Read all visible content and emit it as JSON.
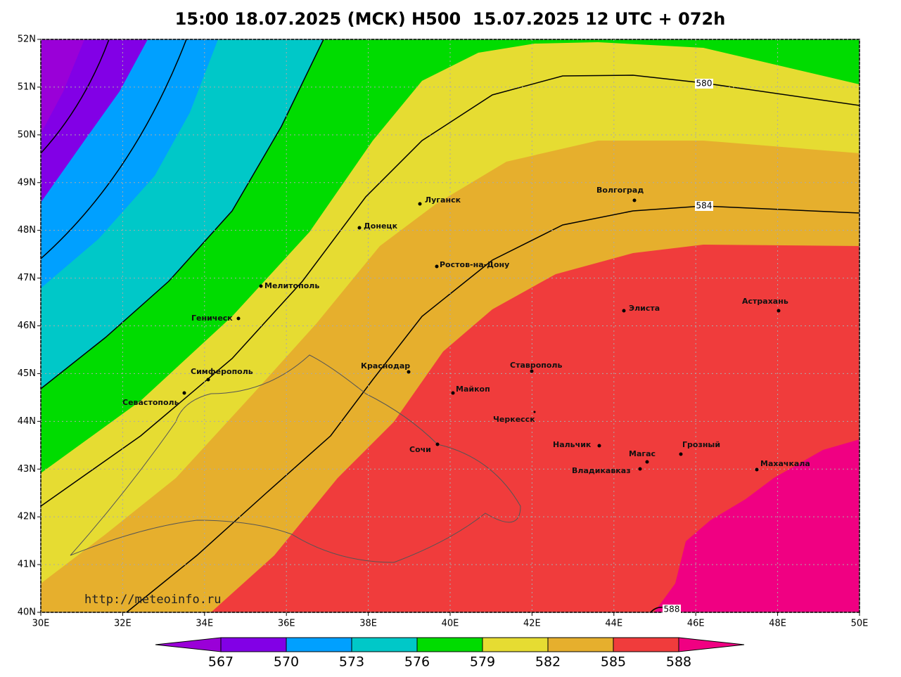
{
  "title": "15:00 18.07.2025 (МСК) H500  15.07.2025 12 UTC + 072h",
  "map": {
    "xlim": [
      30,
      50
    ],
    "ylim": [
      40,
      52
    ],
    "xticks": [
      {
        "value": 30,
        "label": "30E"
      },
      {
        "value": 32,
        "label": "32E"
      },
      {
        "value": 34,
        "label": "34E"
      },
      {
        "value": 36,
        "label": "36E"
      },
      {
        "value": 38,
        "label": "38E"
      },
      {
        "value": 40,
        "label": "40E"
      },
      {
        "value": 42,
        "label": "42E"
      },
      {
        "value": 44,
        "label": "44E"
      },
      {
        "value": 46,
        "label": "46E"
      },
      {
        "value": 48,
        "label": "48E"
      },
      {
        "value": 50,
        "label": "50E"
      }
    ],
    "yticks": [
      {
        "value": 40,
        "label": "40N"
      },
      {
        "value": 41,
        "label": "41N"
      },
      {
        "value": 42,
        "label": "42N"
      },
      {
        "value": 43,
        "label": "43N"
      },
      {
        "value": 44,
        "label": "44N"
      },
      {
        "value": 45,
        "label": "45N"
      },
      {
        "value": 46,
        "label": "46N"
      },
      {
        "value": 47,
        "label": "47N"
      },
      {
        "value": 48,
        "label": "48N"
      },
      {
        "value": 49,
        "label": "49N"
      },
      {
        "value": 50,
        "label": "50N"
      },
      {
        "value": 51,
        "label": "51N"
      },
      {
        "value": 52,
        "label": "52N"
      }
    ],
    "grid": true
  },
  "contour_labels": [
    "580",
    "584",
    "588"
  ],
  "cities": [
    "Луганск",
    "Донецк",
    "Волгоград",
    "Ростов-на-Дону",
    "Мелитополь",
    "Геническ",
    "Элиста",
    "Астрахань",
    "Симферополь",
    "Севастополь",
    "Краснодар",
    "Ставрополь",
    "Майкоп",
    "Черкесск",
    "Сочи",
    "Нальчик",
    "Магас",
    "Грозный",
    "Владикавказ",
    "Махачкала"
  ],
  "colorbar": {
    "ticks": [
      567,
      570,
      573,
      576,
      579,
      582,
      585,
      588
    ],
    "colors": [
      "#9a00d8",
      "#8200e6",
      "#00a0ff",
      "#00c8c8",
      "#00dc00",
      "#e6dc32",
      "#e6af2d",
      "#f03c3c",
      "#f00082"
    ]
  },
  "source": "http://meteoinfo.ru"
}
